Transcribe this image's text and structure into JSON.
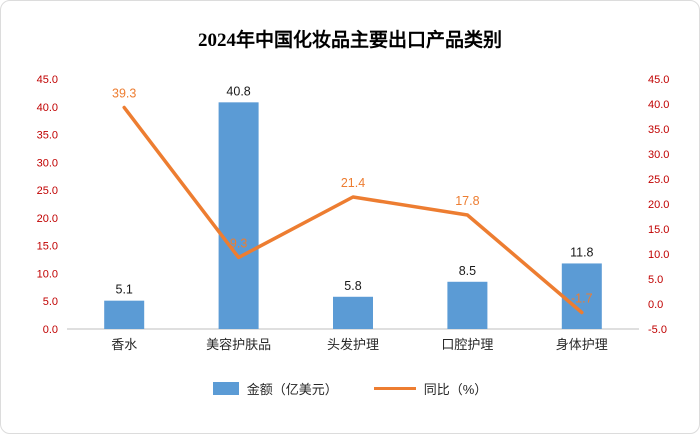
{
  "title": "2024年中国化妆品主要出口产品类别",
  "legend": [
    {
      "label": "金额（亿美元）",
      "type": "bar",
      "color": "#5B9BD5"
    },
    {
      "label": "同比（%）",
      "type": "line",
      "color": "#ED7D31"
    }
  ],
  "chart_data": {
    "type": "bar+line",
    "title": "2024年中国化妆品主要出口产品类别",
    "categories": [
      "香水",
      "美容护肤品",
      "头发护理",
      "口腔护理",
      "身体护理"
    ],
    "series": [
      {
        "name": "金额（亿美元）",
        "type": "bar",
        "axis": "left",
        "color": "#5B9BD5",
        "values": [
          5.1,
          40.8,
          5.8,
          8.5,
          11.8
        ],
        "labels": [
          "5.1",
          "40.8",
          "5.8",
          "8.5",
          "11.8"
        ]
      },
      {
        "name": "同比（%）",
        "type": "line",
        "axis": "right",
        "color": "#ED7D31",
        "values": [
          39.3,
          9.3,
          21.4,
          17.8,
          -1.7
        ],
        "labels": [
          "39.3",
          "9.3",
          "21.4",
          "17.8",
          "-1.7"
        ]
      }
    ],
    "left_axis": {
      "min": 0,
      "max": 45,
      "step": 5
    },
    "right_axis": {
      "min": -5,
      "max": 45,
      "step": 5
    },
    "tick_color": "#C00000",
    "grid": false,
    "legend_position": "bottom"
  }
}
